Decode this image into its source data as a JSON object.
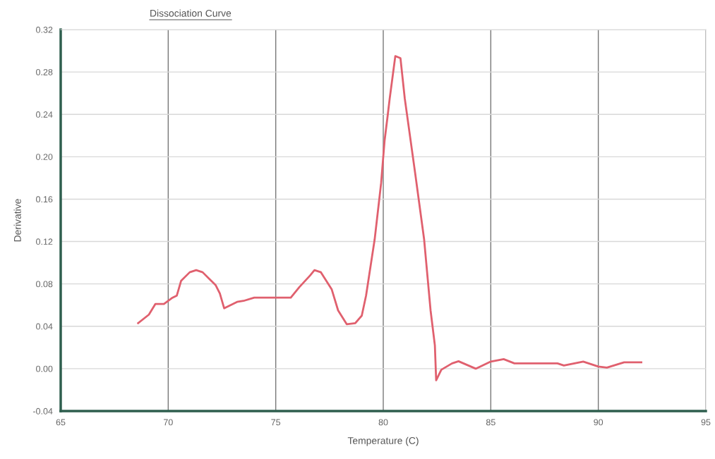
{
  "chart_data": {
    "type": "line",
    "title": "Dissociation Curve",
    "xlabel": "Temperature (C)",
    "ylabel": "Derivative",
    "xlim": [
      65,
      95
    ],
    "xticks": [
      65,
      70,
      75,
      80,
      85,
      90,
      95
    ],
    "ylim": [
      -0.04,
      0.32
    ],
    "yticks": [
      {
        "value": -0.04,
        "label": "-0.04"
      },
      {
        "value": 0.0,
        "label": "0.00"
      },
      {
        "value": 0.04,
        "label": "0.04"
      },
      {
        "value": 0.08,
        "label": "0.08"
      },
      {
        "value": 0.12,
        "label": "0.12"
      },
      {
        "value": 0.16,
        "label": "0.16"
      },
      {
        "value": 0.2,
        "label": "0.20"
      },
      {
        "value": 0.24,
        "label": "0.24"
      },
      {
        "value": 0.28,
        "label": "0.28"
      },
      {
        "value": 0.32,
        "label": "0.32"
      }
    ],
    "grid": true,
    "legend": false,
    "series": [
      {
        "color": "#e0606e",
        "x": [
          68.6,
          69.1,
          69.4,
          69.8,
          70.2,
          70.4,
          70.6,
          71.0,
          71.3,
          71.6,
          71.9,
          72.2,
          72.4,
          72.6,
          73.2,
          73.5,
          74.0,
          74.3,
          75.0,
          75.7,
          76.1,
          76.6,
          76.8,
          77.1,
          77.6,
          77.9,
          78.3,
          78.7,
          79.0,
          79.2,
          79.6,
          79.9,
          80.06,
          80.2,
          80.3,
          80.56,
          80.8,
          81.0,
          81.5,
          81.9,
          82.2,
          82.4,
          82.46,
          82.7,
          83.2,
          83.5,
          84.3,
          85.0,
          85.6,
          86.1,
          87.1,
          88.1,
          88.4,
          89.3,
          90.0,
          90.4,
          91.2,
          92.0
        ],
        "values": [
          0.043,
          0.051,
          0.061,
          0.061,
          0.067,
          0.069,
          0.083,
          0.091,
          0.093,
          0.091,
          0.085,
          0.079,
          0.071,
          0.057,
          0.063,
          0.064,
          0.067,
          0.067,
          0.067,
          0.067,
          0.077,
          0.088,
          0.093,
          0.091,
          0.075,
          0.055,
          0.042,
          0.043,
          0.05,
          0.069,
          0.122,
          0.175,
          0.215,
          0.238,
          0.255,
          0.295,
          0.293,
          0.255,
          0.182,
          0.122,
          0.055,
          0.022,
          -0.011,
          -0.001,
          0.005,
          0.007,
          0.0,
          0.0067,
          0.009,
          0.005,
          0.005,
          0.005,
          0.003,
          0.0067,
          0.002,
          0.001,
          0.006,
          0.006
        ]
      }
    ]
  }
}
